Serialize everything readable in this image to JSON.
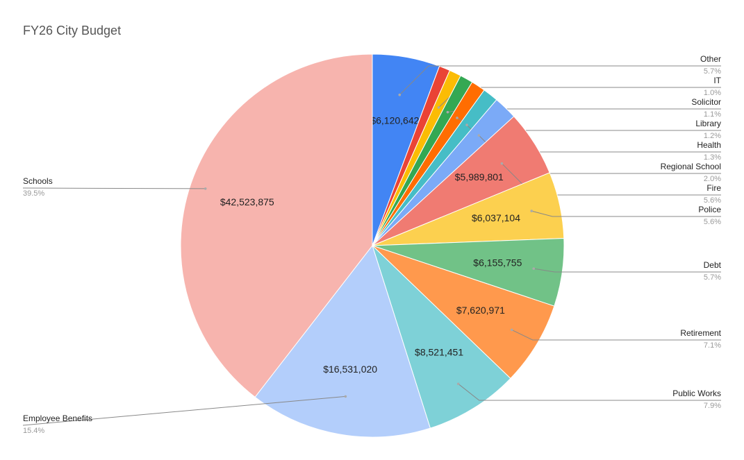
{
  "chart_data": {
    "type": "pie",
    "title": "FY26 City Budget",
    "categories": [
      "Other",
      null,
      "IT",
      "Solicitor",
      "Library",
      "Health",
      "Regional School",
      "Fire",
      "Police",
      "Debt",
      "Retirement",
      "Public Works",
      "Employee Benefits",
      "Schools"
    ],
    "values": [
      6120642,
      1000000,
      1080000,
      1180000,
      1290000,
      1400000,
      2150000,
      5989801,
      6037104,
      6155755,
      7620971,
      8521451,
      16531020,
      42523875
    ],
    "value_labels": [
      "$6,120,642",
      null,
      null,
      null,
      null,
      null,
      null,
      "$5,989,801",
      "$6,037,104",
      "$6,155,755",
      "$7,620,971",
      "$8,521,451",
      "$16,531,020",
      "$42,523,875"
    ],
    "percent_labels": [
      "5.7%",
      null,
      "1.0%",
      "1.1%",
      "1.2%",
      "1.3%",
      "2.0%",
      "5.6%",
      "5.6%",
      "5.7%",
      "7.1%",
      "7.9%",
      "15.4%",
      "39.5%"
    ],
    "colors": [
      "#4285f4",
      "#ea4335",
      "#fbbc04",
      "#34a853",
      "#ff6d01",
      "#46bdc6",
      "#7baaf7",
      "#f07b72",
      "#fcd04f",
      "#71c287",
      "#ff994d",
      "#7ed1d7",
      "#b3cefb",
      "#f7b4ae"
    ]
  }
}
